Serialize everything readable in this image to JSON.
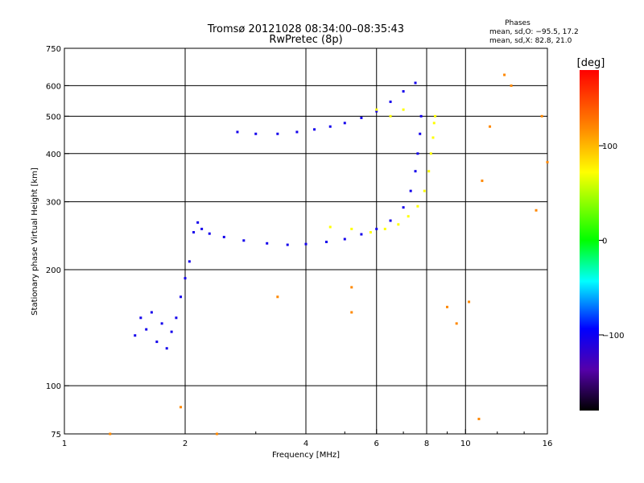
{
  "chart_data": {
    "type": "scatter",
    "title": "Tromsø 20121028 08:34:00–08:35:43",
    "subtitle": "RwPretec (8p)",
    "xlabel": "Frequency [MHz]",
    "ylabel": "Stationary phase Virtual Height [km]",
    "x_scale": "log",
    "y_scale": "log",
    "xlim": [
      1,
      16
    ],
    "ylim": [
      75,
      750
    ],
    "x_ticks": [
      1,
      2,
      4,
      6,
      8,
      10,
      16
    ],
    "x_tick_labels": [
      "1",
      "2",
      "4",
      "6",
      "8",
      "10",
      "16"
    ],
    "y_ticks": [
      75,
      100,
      200,
      300,
      400,
      500,
      600,
      750
    ],
    "y_tick_labels": [
      "75",
      "100",
      "200",
      "300",
      "400",
      "500",
      "600",
      "750"
    ],
    "grid": true,
    "stats": {
      "heading": "Phases",
      "line_o": "mean, sd,O: −95.5, 17.2",
      "line_x": "mean, sd,X:  82.8, 21.0"
    },
    "colorbar": {
      "label": "[deg]",
      "range": [
        -180,
        180
      ],
      "ticks": [
        100,
        0,
        -100
      ],
      "tick_labels": [
        "100",
        "0",
        "−100"
      ]
    },
    "series": [
      {
        "name": "O",
        "color_phase": -100,
        "points": [
          [
            1.5,
            135
          ],
          [
            1.55,
            150
          ],
          [
            1.6,
            140
          ],
          [
            1.65,
            155
          ],
          [
            1.7,
            130
          ],
          [
            1.75,
            145
          ],
          [
            1.8,
            125
          ],
          [
            1.85,
            138
          ],
          [
            1.9,
            150
          ],
          [
            1.95,
            170
          ],
          [
            2.0,
            190
          ],
          [
            2.05,
            210
          ],
          [
            2.1,
            250
          ],
          [
            2.15,
            265
          ],
          [
            2.2,
            255
          ],
          [
            2.3,
            248
          ],
          [
            2.5,
            243
          ],
          [
            2.8,
            238
          ],
          [
            3.2,
            234
          ],
          [
            3.6,
            232
          ],
          [
            4.0,
            233
          ],
          [
            4.5,
            236
          ],
          [
            5.0,
            240
          ],
          [
            5.5,
            247
          ],
          [
            6.0,
            255
          ],
          [
            6.5,
            268
          ],
          [
            7.0,
            290
          ],
          [
            7.3,
            320
          ],
          [
            7.5,
            360
          ],
          [
            7.6,
            400
          ],
          [
            7.7,
            450
          ],
          [
            7.75,
            500
          ],
          [
            2.7,
            455
          ],
          [
            3.0,
            450
          ],
          [
            3.4,
            450
          ],
          [
            3.8,
            455
          ],
          [
            4.2,
            462
          ],
          [
            4.6,
            470
          ],
          [
            5.0,
            480
          ],
          [
            5.5,
            495
          ],
          [
            6.0,
            515
          ],
          [
            6.5,
            545
          ],
          [
            7.0,
            580
          ],
          [
            7.5,
            610
          ]
        ]
      },
      {
        "name": "X",
        "color_phase": 90,
        "points": [
          [
            4.6,
            258
          ],
          [
            5.2,
            255
          ],
          [
            5.8,
            250
          ],
          [
            6.3,
            255
          ],
          [
            6.8,
            262
          ],
          [
            7.2,
            275
          ],
          [
            7.6,
            292
          ],
          [
            7.9,
            320
          ],
          [
            8.1,
            360
          ],
          [
            8.2,
            400
          ],
          [
            8.3,
            440
          ],
          [
            8.35,
            480
          ],
          [
            8.4,
            500
          ],
          [
            6.0,
            520
          ],
          [
            6.5,
            500
          ],
          [
            7.0,
            520
          ]
        ]
      },
      {
        "name": "scatter",
        "color_phase": 120,
        "points": [
          [
            1.3,
            75
          ],
          [
            1.95,
            88
          ],
          [
            2.4,
            75
          ],
          [
            3.4,
            170
          ],
          [
            5.2,
            155
          ],
          [
            5.2,
            180
          ],
          [
            9.0,
            160
          ],
          [
            9.5,
            145
          ],
          [
            10.2,
            165
          ],
          [
            10.8,
            82
          ],
          [
            11.0,
            340
          ],
          [
            11.5,
            470
          ],
          [
            12.5,
            640
          ],
          [
            13.0,
            600
          ],
          [
            15.0,
            285
          ],
          [
            15.5,
            500
          ],
          [
            16.0,
            380
          ]
        ]
      }
    ]
  }
}
